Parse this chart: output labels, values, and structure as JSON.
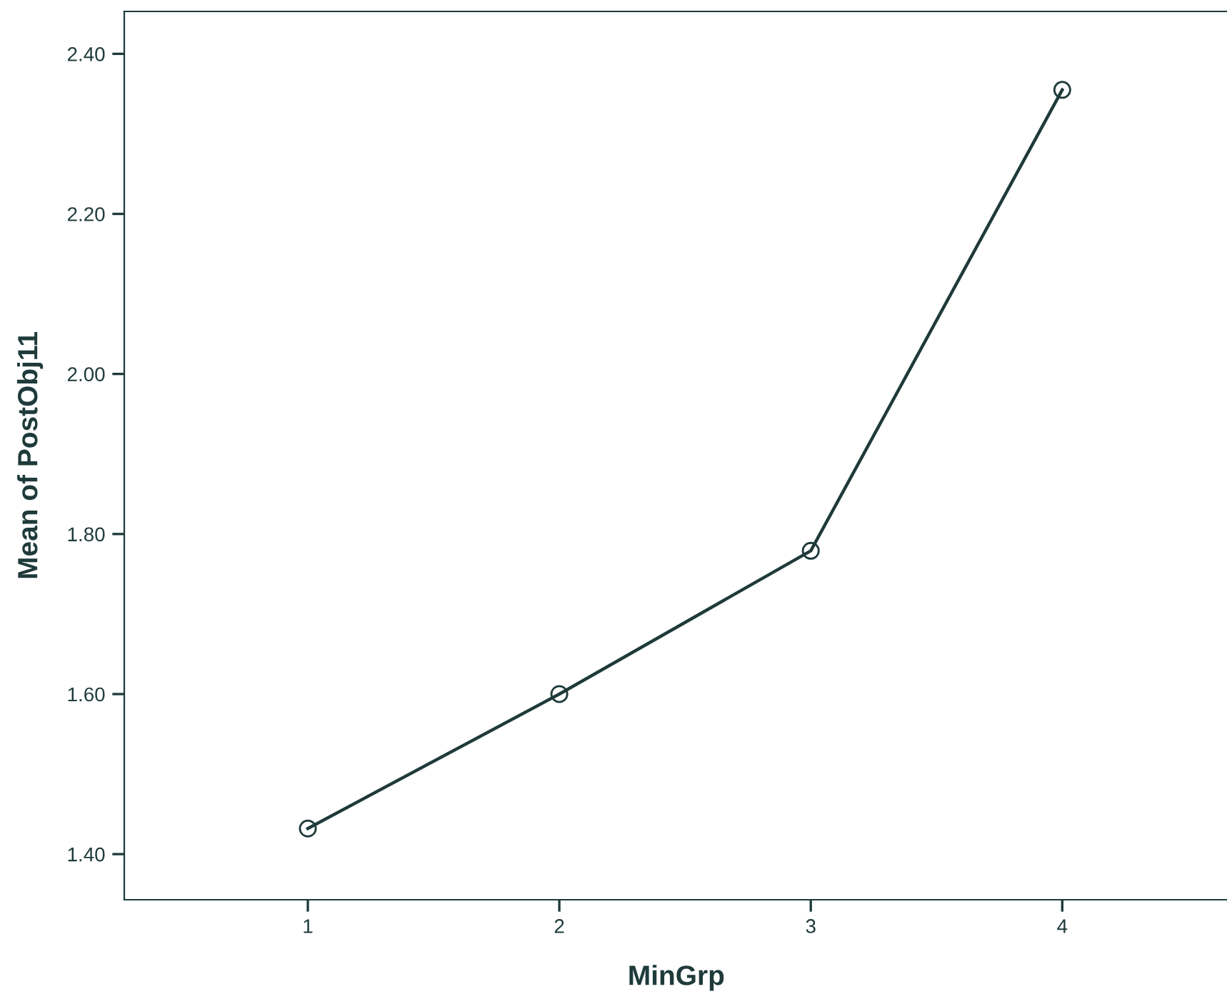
{
  "chart_data": {
    "type": "line",
    "xlabel": "MinGrp",
    "ylabel": "Mean of PostObj11",
    "categories": [
      "1",
      "2",
      "3",
      "4"
    ],
    "series": [
      {
        "color": "#1f3a3a",
        "values": [
          1.432,
          1.6,
          1.779,
          2.355
        ]
      }
    ],
    "ylim": [
      1.343,
      2.453
    ],
    "yticks": [
      {
        "value": 1.4,
        "label": "1.40"
      },
      {
        "value": 1.6,
        "label": "1.60"
      },
      {
        "value": 1.8,
        "label": "1.80"
      },
      {
        "value": 2.0,
        "label": "2.00"
      },
      {
        "value": 2.2,
        "label": "2.20"
      },
      {
        "value": 2.4,
        "label": "2.40"
      }
    ],
    "grid": false,
    "legend": false,
    "marker": "circle",
    "line_style": "solid"
  }
}
